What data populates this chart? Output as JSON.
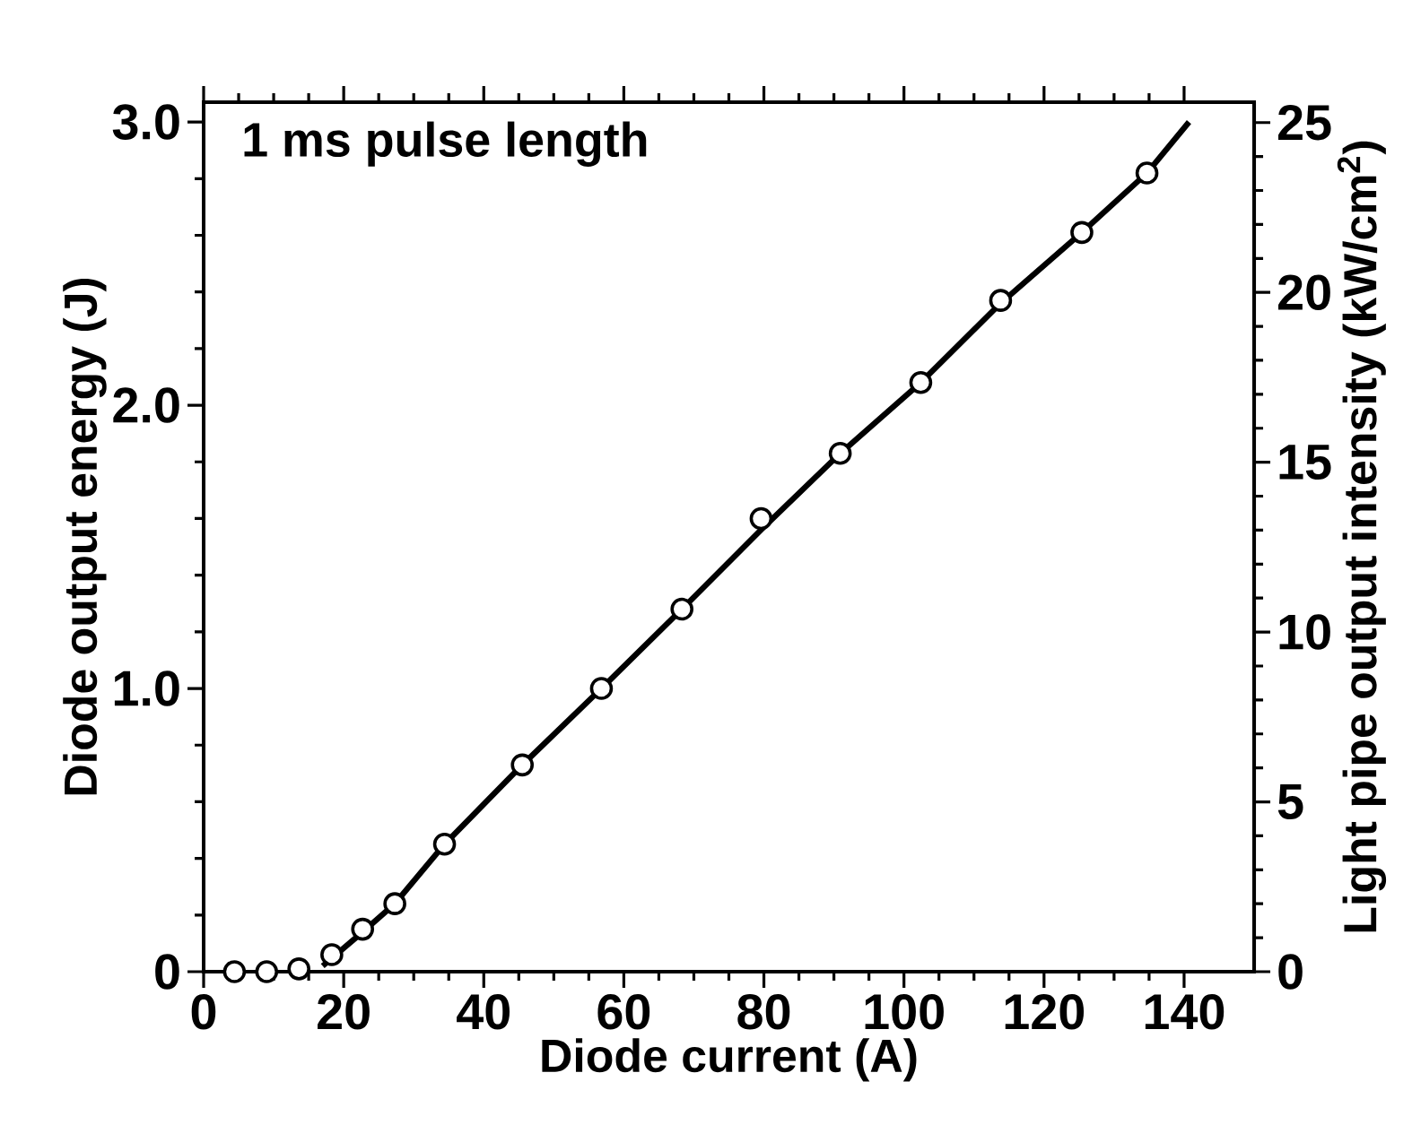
{
  "chart_data": {
    "type": "scatter",
    "xlabel": "Diode current (A)",
    "ylabel": "Diode output energy (J)",
    "y2label": "Light pipe output intensity (kW/cm$^{2}$)",
    "annotations": [
      "1 ms pulse length"
    ],
    "marker": "circle",
    "xlim": [
      0,
      150
    ],
    "xticks": [
      0,
      20,
      40,
      60,
      80,
      100,
      120,
      140
    ],
    "ylim": [
      0,
      3.07
    ],
    "yticks": [
      0,
      {
        "value": 1,
        "label": "1.0"
      },
      {
        "value": 2,
        "label": "2.0"
      },
      {
        "value": 3,
        "label": "3.0"
      }
    ],
    "y2lim": [
      0,
      25.6
    ],
    "y2ticks": [
      0,
      5,
      10,
      15,
      20,
      25
    ],
    "series": [
      {
        "color": "#000000",
        "x": [
          4.4,
          9.0,
          13.6,
          18.3,
          22.7,
          27.3,
          34.4,
          45.5,
          56.8,
          68.3,
          79.6,
          90.9,
          102.4,
          113.8,
          125.4,
          134.7
        ],
        "values": [
          0,
          0,
          0.01,
          0.06,
          0.15,
          0.24,
          0.45,
          0.73,
          1.0,
          1.28,
          1.6,
          1.83,
          2.08,
          2.37,
          2.61,
          2.82
        ]
      },
      {
        "type": "line",
        "color": "#000000",
        "marker": "none",
        "line_style": "solid",
        "x": [
          17,
          22.7,
          27.3,
          34.4,
          45.5,
          56.8,
          68.3,
          79.6,
          90.9,
          102.4,
          113.8,
          125.4,
          134.7,
          140.7
        ],
        "values": [
          0.02,
          0.14,
          0.24,
          0.45,
          0.73,
          1.0,
          1.28,
          1.56,
          1.83,
          2.08,
          2.36,
          2.61,
          2.82,
          3.0
        ]
      }
    ]
  }
}
